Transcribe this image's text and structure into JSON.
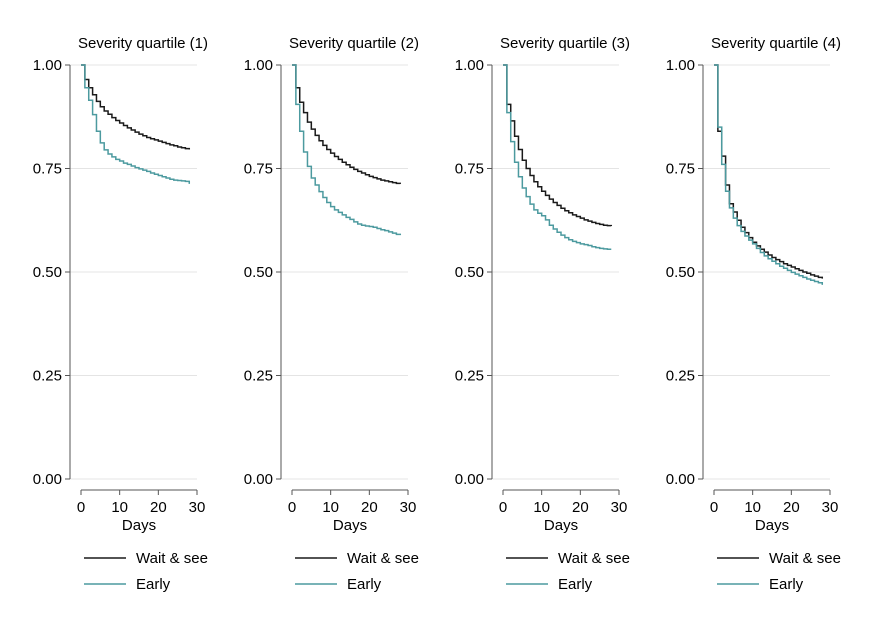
{
  "colors": {
    "wait": "#1a1a1a",
    "early": "#4c9a9f",
    "grid": "#e4e4e4",
    "axis": "#555555"
  },
  "chart_data": [
    {
      "type": "line",
      "title": "Severity quartile (1)",
      "xlabel": "Days",
      "ylabel": "",
      "xlim": [
        0,
        30
      ],
      "ylim": [
        0,
        1
      ],
      "xticks": [
        "0",
        "10",
        "20",
        "30"
      ],
      "yticks": [
        "0.00",
        "0.25",
        "0.50",
        "0.75",
        "1.00"
      ],
      "grid": true,
      "legend_position": "bottom",
      "series": [
        {
          "name": "Wait & see",
          "color_key": "wait",
          "x": [
            0,
            1,
            2,
            3,
            4,
            5,
            6,
            7,
            8,
            9,
            10,
            11,
            12,
            13,
            14,
            15,
            16,
            17,
            18,
            19,
            20,
            21,
            22,
            23,
            24,
            25,
            26,
            27,
            28
          ],
          "y": [
            1.0,
            0.965,
            0.945,
            0.928,
            0.912,
            0.899,
            0.889,
            0.881,
            0.873,
            0.866,
            0.86,
            0.854,
            0.848,
            0.843,
            0.838,
            0.833,
            0.829,
            0.825,
            0.822,
            0.819,
            0.816,
            0.813,
            0.81,
            0.807,
            0.805,
            0.802,
            0.8,
            0.798,
            0.796
          ]
        },
        {
          "name": "Early",
          "color_key": "early",
          "x": [
            0,
            1,
            2,
            3,
            4,
            5,
            6,
            7,
            8,
            9,
            10,
            11,
            12,
            13,
            14,
            15,
            16,
            17,
            18,
            19,
            20,
            21,
            22,
            23,
            24,
            25,
            26,
            27,
            28
          ],
          "y": [
            1.0,
            0.945,
            0.915,
            0.88,
            0.84,
            0.812,
            0.795,
            0.785,
            0.778,
            0.772,
            0.768,
            0.763,
            0.76,
            0.756,
            0.752,
            0.749,
            0.746,
            0.743,
            0.739,
            0.736,
            0.733,
            0.73,
            0.727,
            0.724,
            0.722,
            0.721,
            0.72,
            0.719,
            0.713
          ]
        }
      ]
    },
    {
      "type": "line",
      "title": "Severity quartile (2)",
      "xlabel": "Days",
      "ylabel": "",
      "xlim": [
        0,
        30
      ],
      "ylim": [
        0,
        1
      ],
      "xticks": [
        "0",
        "10",
        "20",
        "30"
      ],
      "yticks": [
        "0.00",
        "0.25",
        "0.50",
        "0.75",
        "1.00"
      ],
      "grid": true,
      "legend_position": "bottom",
      "series": [
        {
          "name": "Wait & see",
          "color_key": "wait",
          "x": [
            0,
            1,
            2,
            3,
            4,
            5,
            6,
            7,
            8,
            9,
            10,
            11,
            12,
            13,
            14,
            15,
            16,
            17,
            18,
            19,
            20,
            21,
            22,
            23,
            24,
            25,
            26,
            27,
            28
          ],
          "y": [
            1.0,
            0.945,
            0.91,
            0.885,
            0.862,
            0.845,
            0.83,
            0.817,
            0.806,
            0.796,
            0.787,
            0.779,
            0.772,
            0.765,
            0.759,
            0.753,
            0.748,
            0.743,
            0.739,
            0.735,
            0.731,
            0.728,
            0.725,
            0.722,
            0.72,
            0.718,
            0.716,
            0.714,
            0.713
          ]
        },
        {
          "name": "Early",
          "color_key": "early",
          "x": [
            0,
            1,
            2,
            3,
            4,
            5,
            6,
            7,
            8,
            9,
            10,
            11,
            12,
            13,
            14,
            15,
            16,
            17,
            18,
            19,
            20,
            21,
            22,
            23,
            24,
            25,
            26,
            27,
            28
          ],
          "y": [
            1.0,
            0.905,
            0.84,
            0.79,
            0.755,
            0.727,
            0.71,
            0.694,
            0.68,
            0.668,
            0.658,
            0.65,
            0.644,
            0.638,
            0.632,
            0.627,
            0.621,
            0.616,
            0.613,
            0.611,
            0.61,
            0.608,
            0.605,
            0.602,
            0.6,
            0.597,
            0.594,
            0.591,
            0.589
          ]
        }
      ]
    },
    {
      "type": "line",
      "title": "Severity quartile (3)",
      "xlabel": "Days",
      "ylabel": "",
      "xlim": [
        0,
        30
      ],
      "ylim": [
        0,
        1
      ],
      "xticks": [
        "0",
        "10",
        "20",
        "30"
      ],
      "yticks": [
        "0.00",
        "0.25",
        "0.50",
        "0.75",
        "1.00"
      ],
      "grid": true,
      "legend_position": "bottom",
      "series": [
        {
          "name": "Wait & see",
          "color_key": "wait",
          "x": [
            0,
            1,
            2,
            3,
            4,
            5,
            6,
            7,
            8,
            9,
            10,
            11,
            12,
            13,
            14,
            15,
            16,
            17,
            18,
            19,
            20,
            21,
            22,
            23,
            24,
            25,
            26,
            27,
            28
          ],
          "y": [
            1.0,
            0.905,
            0.865,
            0.828,
            0.796,
            0.77,
            0.75,
            0.733,
            0.718,
            0.706,
            0.695,
            0.685,
            0.676,
            0.668,
            0.661,
            0.654,
            0.648,
            0.643,
            0.638,
            0.634,
            0.63,
            0.626,
            0.623,
            0.62,
            0.617,
            0.615,
            0.613,
            0.612,
            0.611
          ]
        },
        {
          "name": "Early",
          "color_key": "early",
          "x": [
            0,
            1,
            2,
            3,
            4,
            5,
            6,
            7,
            8,
            9,
            10,
            11,
            12,
            13,
            14,
            15,
            16,
            17,
            18,
            19,
            20,
            21,
            22,
            23,
            24,
            25,
            26,
            27,
            28
          ],
          "y": [
            1.0,
            0.885,
            0.815,
            0.765,
            0.73,
            0.703,
            0.682,
            0.664,
            0.65,
            0.642,
            0.636,
            0.626,
            0.613,
            0.604,
            0.596,
            0.589,
            0.583,
            0.578,
            0.574,
            0.571,
            0.568,
            0.566,
            0.564,
            0.561,
            0.559,
            0.557,
            0.556,
            0.555,
            0.555
          ]
        }
      ]
    },
    {
      "type": "line",
      "title": "Severity quartile (4)",
      "xlabel": "Days",
      "ylabel": "",
      "xlim": [
        0,
        30
      ],
      "ylim": [
        0,
        1
      ],
      "xticks": [
        "0",
        "10",
        "20",
        "30"
      ],
      "yticks": [
        "0.00",
        "0.25",
        "0.50",
        "0.75",
        "1.00"
      ],
      "grid": true,
      "legend_position": "bottom",
      "series": [
        {
          "name": "Wait & see",
          "color_key": "wait",
          "x": [
            0,
            1,
            2,
            3,
            4,
            5,
            6,
            7,
            8,
            9,
            10,
            11,
            12,
            13,
            14,
            15,
            16,
            17,
            18,
            19,
            20,
            21,
            22,
            23,
            24,
            25,
            26,
            27,
            28
          ],
          "y": [
            1.0,
            0.84,
            0.78,
            0.71,
            0.665,
            0.645,
            0.625,
            0.608,
            0.595,
            0.583,
            0.572,
            0.563,
            0.555,
            0.548,
            0.541,
            0.535,
            0.53,
            0.525,
            0.52,
            0.516,
            0.512,
            0.508,
            0.504,
            0.5,
            0.497,
            0.493,
            0.49,
            0.487,
            0.484
          ]
        },
        {
          "name": "Early",
          "color_key": "early",
          "x": [
            0,
            1,
            2,
            3,
            4,
            5,
            6,
            7,
            8,
            9,
            10,
            11,
            12,
            13,
            14,
            15,
            16,
            17,
            18,
            19,
            20,
            21,
            22,
            23,
            24,
            25,
            26,
            27,
            28
          ],
          "y": [
            1.0,
            0.85,
            0.76,
            0.695,
            0.655,
            0.63,
            0.612,
            0.598,
            0.587,
            0.577,
            0.568,
            0.557,
            0.547,
            0.539,
            0.532,
            0.526,
            0.52,
            0.514,
            0.509,
            0.504,
            0.499,
            0.495,
            0.491,
            0.487,
            0.483,
            0.48,
            0.477,
            0.474,
            0.469
          ]
        }
      ]
    }
  ]
}
